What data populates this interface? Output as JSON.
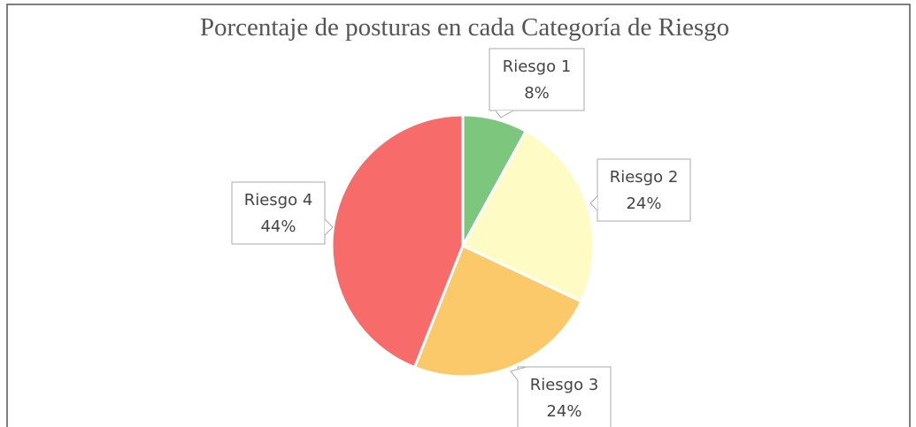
{
  "chart_data": {
    "type": "pie",
    "title": "Porcentaje de posturas en cada Categoría de Riesgo",
    "categories": [
      "Riesgo 1",
      "Riesgo 2",
      "Riesgo 3",
      "Riesgo 4"
    ],
    "values": [
      8,
      24,
      24,
      44
    ],
    "value_labels": [
      "8%",
      "24%",
      "24%",
      "44%"
    ],
    "colors": [
      "#7dc67e",
      "#fffbc4",
      "#fcc96a",
      "#f86b6b"
    ]
  }
}
